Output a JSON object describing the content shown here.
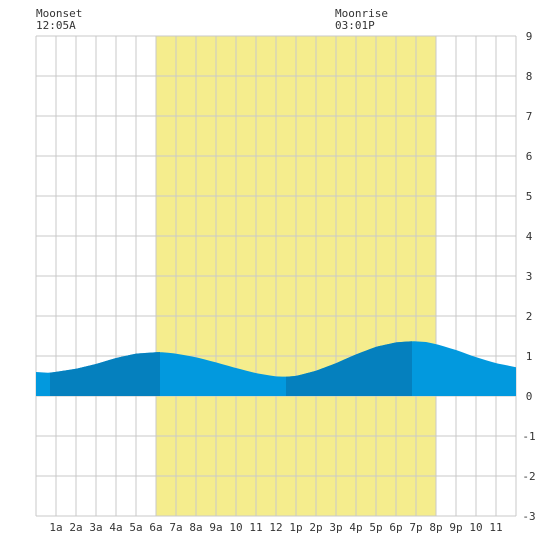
{
  "chart_data": {
    "type": "area",
    "moonset": {
      "label": "Moonset",
      "time": "12:05A"
    },
    "moonrise": {
      "label": "Moonrise",
      "time": "03:01P"
    },
    "x_ticks": [
      "1a",
      "2a",
      "3a",
      "4a",
      "5a",
      "6a",
      "7a",
      "8a",
      "9a",
      "10",
      "11",
      "12",
      "1p",
      "2p",
      "3p",
      "4p",
      "5p",
      "6p",
      "7p",
      "8p",
      "9p",
      "10",
      "11"
    ],
    "y_ticks": [
      "9",
      "8",
      "7",
      "6",
      "5",
      "4",
      "3",
      "2",
      "1",
      "0",
      "-1",
      "-2",
      "-3"
    ],
    "ylim": [
      -3,
      9
    ],
    "xlim_hours": [
      0,
      24
    ],
    "daylight_hours": [
      6.0,
      20.0
    ],
    "tide_series": {
      "x_hours": [
        0,
        0.7,
        2,
        3,
        4,
        5,
        6.2,
        7,
        8,
        9,
        10,
        11,
        12,
        12.5,
        13,
        14,
        15,
        16,
        17,
        18,
        18.8,
        19.5,
        20,
        21,
        22,
        23,
        24
      ],
      "height": [
        0.6,
        0.58,
        0.68,
        0.8,
        0.95,
        1.06,
        1.1,
        1.06,
        0.97,
        0.84,
        0.7,
        0.57,
        0.49,
        0.48,
        0.5,
        0.63,
        0.82,
        1.04,
        1.23,
        1.34,
        1.37,
        1.35,
        1.3,
        1.15,
        0.97,
        0.82,
        0.72
      ]
    },
    "shade_bands": [
      [
        0.7,
        6.2
      ],
      [
        12.5,
        18.8
      ]
    ],
    "colors": {
      "daylight": "#f5ed8d",
      "water": "#0299de",
      "water_dark": "#0580be",
      "grid": "#c9c9c9",
      "background": "#ffffff"
    }
  }
}
